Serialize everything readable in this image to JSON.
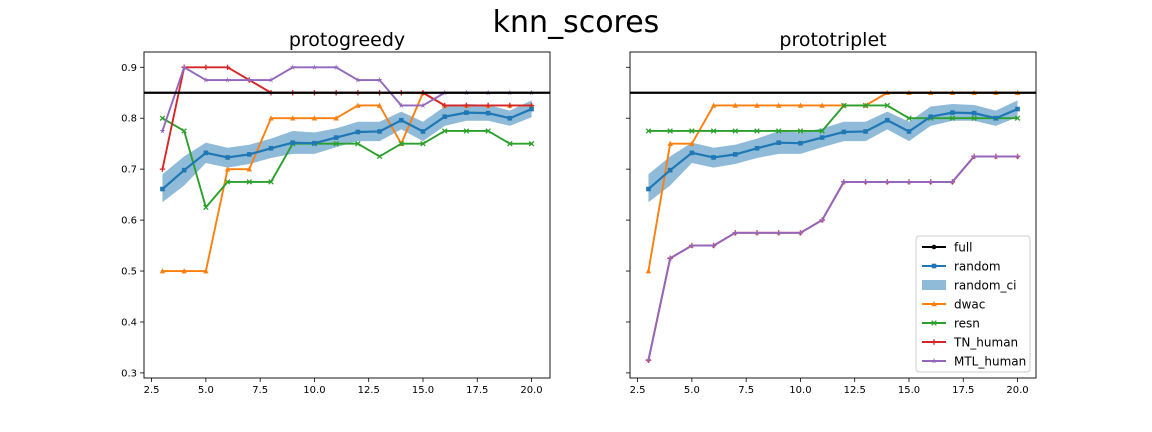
{
  "suptitle": "knn_scores",
  "colors": {
    "full": "#000000",
    "random": "#1f77b4",
    "random_ci": "#1f77b4",
    "dwac": "#ff7f0e",
    "resn": "#2ca02c",
    "TN_human": "#d62728",
    "MTL_human": "#9467bd"
  },
  "chart_data": [
    {
      "type": "line",
      "title": "protogreedy",
      "xlabel": "",
      "ylabel": "",
      "xlim": [
        2.15,
        20.85
      ],
      "ylim": [
        0.29,
        0.93
      ],
      "xticks": [
        2.5,
        5.0,
        7.5,
        10.0,
        12.5,
        15.0,
        17.5,
        20.0
      ],
      "xtick_labels": [
        "2.5",
        "5.0",
        "7.5",
        "10.0",
        "12.5",
        "15.0",
        "17.5",
        "20.0"
      ],
      "yticks": [
        0.3,
        0.4,
        0.5,
        0.6,
        0.7,
        0.8,
        0.9
      ],
      "ytick_labels": [
        "0.3",
        "0.4",
        "0.5",
        "0.6",
        "0.7",
        "0.8",
        "0.9"
      ],
      "show_ytick_labels": true,
      "grid": false,
      "full_line": 0.85,
      "x": [
        3,
        4,
        5,
        6,
        7,
        8,
        9,
        10,
        11,
        12,
        13,
        14,
        15,
        16,
        17,
        18,
        19,
        20
      ],
      "random_ci": {
        "lower": [
          0.635,
          0.668,
          0.712,
          0.703,
          0.71,
          0.722,
          0.73,
          0.73,
          0.743,
          0.755,
          0.755,
          0.778,
          0.755,
          0.785,
          0.795,
          0.795,
          0.785,
          0.802
        ],
        "upper": [
          0.69,
          0.725,
          0.752,
          0.742,
          0.748,
          0.76,
          0.775,
          0.772,
          0.78,
          0.793,
          0.793,
          0.813,
          0.793,
          0.823,
          0.828,
          0.826,
          0.815,
          0.835
        ]
      },
      "series": [
        {
          "name": "random",
          "values": [
            0.661,
            0.698,
            0.732,
            0.723,
            0.729,
            0.741,
            0.752,
            0.751,
            0.762,
            0.773,
            0.774,
            0.796,
            0.774,
            0.803,
            0.811,
            0.81,
            0.8,
            0.818
          ]
        },
        {
          "name": "dwac",
          "values": [
            0.5,
            0.5,
            0.5,
            0.7,
            0.7,
            0.8,
            0.8,
            0.8,
            0.8,
            0.825,
            0.825,
            0.75,
            0.85,
            0.825,
            0.825,
            0.825,
            0.825,
            0.825
          ]
        },
        {
          "name": "resn",
          "values": [
            0.8,
            0.775,
            0.625,
            0.675,
            0.675,
            0.675,
            0.75,
            0.75,
            0.75,
            0.75,
            0.725,
            0.75,
            0.75,
            0.775,
            0.775,
            0.775,
            0.75,
            0.75
          ]
        },
        {
          "name": "TN_human",
          "values": [
            0.7,
            0.9,
            0.9,
            0.9,
            0.875,
            0.85,
            0.85,
            0.85,
            0.85,
            0.85,
            0.85,
            0.85,
            0.85,
            0.825,
            0.825,
            0.825,
            0.825,
            0.825
          ]
        },
        {
          "name": "MTL_human",
          "values": [
            0.775,
            0.9,
            0.875,
            0.875,
            0.875,
            0.875,
            0.9,
            0.9,
            0.9,
            0.875,
            0.875,
            0.825,
            0.825,
            0.85,
            0.85,
            0.85,
            0.85,
            0.85
          ]
        }
      ]
    },
    {
      "type": "line",
      "title": "prototriplet",
      "xlabel": "",
      "ylabel": "",
      "xlim": [
        2.15,
        20.85
      ],
      "ylim": [
        0.29,
        0.93
      ],
      "xticks": [
        2.5,
        5.0,
        7.5,
        10.0,
        12.5,
        15.0,
        17.5,
        20.0
      ],
      "xtick_labels": [
        "2.5",
        "5.0",
        "7.5",
        "10.0",
        "12.5",
        "15.0",
        "17.5",
        "20.0"
      ],
      "yticks": [
        0.3,
        0.4,
        0.5,
        0.6,
        0.7,
        0.8,
        0.9
      ],
      "ytick_labels": [
        "0.3",
        "0.4",
        "0.5",
        "0.6",
        "0.7",
        "0.8",
        "0.9"
      ],
      "show_ytick_labels": false,
      "grid": false,
      "full_line": 0.85,
      "legend_position": "lower-right",
      "x": [
        3,
        4,
        5,
        6,
        7,
        8,
        9,
        10,
        11,
        12,
        13,
        14,
        15,
        16,
        17,
        18,
        19,
        20
      ],
      "random_ci": {
        "lower": [
          0.635,
          0.668,
          0.712,
          0.703,
          0.71,
          0.722,
          0.73,
          0.73,
          0.743,
          0.755,
          0.755,
          0.778,
          0.755,
          0.785,
          0.795,
          0.795,
          0.785,
          0.802
        ],
        "upper": [
          0.69,
          0.725,
          0.752,
          0.742,
          0.748,
          0.76,
          0.775,
          0.772,
          0.78,
          0.793,
          0.793,
          0.813,
          0.793,
          0.823,
          0.828,
          0.826,
          0.815,
          0.835
        ]
      },
      "series": [
        {
          "name": "random",
          "values": [
            0.661,
            0.698,
            0.732,
            0.723,
            0.729,
            0.741,
            0.752,
            0.751,
            0.762,
            0.773,
            0.774,
            0.796,
            0.774,
            0.803,
            0.811,
            0.81,
            0.8,
            0.818
          ]
        },
        {
          "name": "dwac",
          "values": [
            0.5,
            0.75,
            0.75,
            0.825,
            0.825,
            0.825,
            0.825,
            0.825,
            0.825,
            0.825,
            0.825,
            0.85,
            0.85,
            0.85,
            0.85,
            0.85,
            0.85,
            0.85
          ]
        },
        {
          "name": "resn",
          "values": [
            0.775,
            0.775,
            0.775,
            0.775,
            0.775,
            0.775,
            0.775,
            0.775,
            0.775,
            0.825,
            0.825,
            0.825,
            0.8,
            0.8,
            0.8,
            0.8,
            0.8,
            0.8
          ]
        },
        {
          "name": "TN_human",
          "values": [
            0.325,
            0.525,
            0.55,
            0.55,
            0.575,
            0.575,
            0.575,
            0.575,
            0.6,
            0.675,
            0.675,
            0.675,
            0.675,
            0.675,
            0.675,
            0.725,
            0.725,
            0.725
          ]
        },
        {
          "name": "MTL_human",
          "values": [
            0.325,
            0.525,
            0.55,
            0.55,
            0.575,
            0.575,
            0.575,
            0.575,
            0.6,
            0.675,
            0.675,
            0.675,
            0.675,
            0.675,
            0.675,
            0.725,
            0.725,
            0.725
          ]
        }
      ]
    }
  ],
  "legend": {
    "entries": [
      {
        "key": "full",
        "label": "full",
        "kind": "line",
        "marker": "circle"
      },
      {
        "key": "random",
        "label": "random",
        "kind": "line",
        "marker": "square"
      },
      {
        "key": "random_ci",
        "label": "random_ci",
        "kind": "patch",
        "marker": "none"
      },
      {
        "key": "dwac",
        "label": "dwac",
        "kind": "line",
        "marker": "triangle"
      },
      {
        "key": "resn",
        "label": "resn",
        "kind": "line",
        "marker": "x"
      },
      {
        "key": "TN_human",
        "label": "TN_human",
        "kind": "line",
        "marker": "plus"
      },
      {
        "key": "MTL_human",
        "label": "MTL_human",
        "kind": "line",
        "marker": "star"
      }
    ]
  }
}
